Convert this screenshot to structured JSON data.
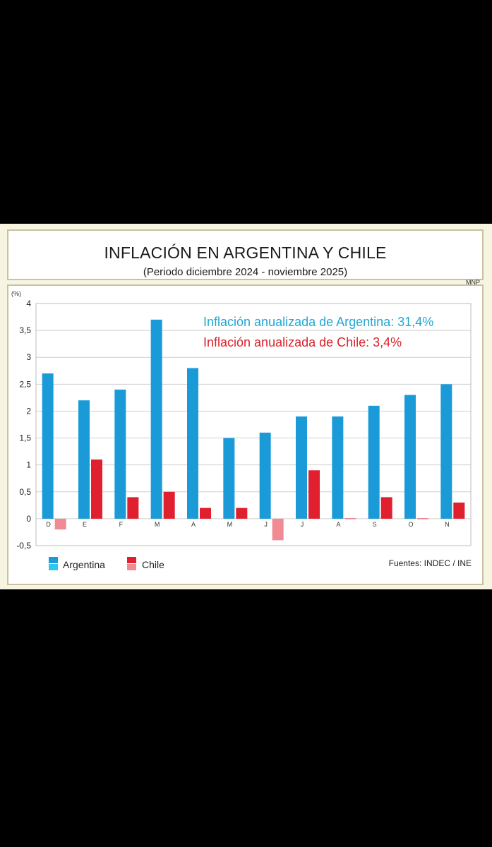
{
  "chart_data": {
    "type": "bar",
    "title": "INFLACIÓN EN ARGENTINA Y CHILE",
    "subtitle": "(Periodo diciembre 2024 - noviembre 2025)",
    "credit": "MNP",
    "y_unit": "(%)",
    "categories": [
      "D",
      "E",
      "F",
      "M",
      "A",
      "M",
      "J",
      "J",
      "A",
      "S",
      "O",
      "N"
    ],
    "series": [
      {
        "name": "Argentina",
        "values": [
          2.7,
          2.2,
          2.4,
          3.7,
          2.8,
          1.5,
          1.6,
          1.9,
          1.9,
          2.1,
          2.3,
          2.5
        ]
      },
      {
        "name": "Chile",
        "values": [
          -0.2,
          1.1,
          0.4,
          0.5,
          0.2,
          0.2,
          -0.4,
          0.9,
          0.0,
          0.4,
          0.0,
          0.3
        ]
      }
    ],
    "ylim": [
      -0.5,
      4
    ],
    "yticks": [
      "4",
      "3,5",
      "3",
      "2,5",
      "2",
      "1,5",
      "1",
      "0,5",
      "0",
      "-0,5"
    ],
    "grid": true,
    "legend": "bottom-left",
    "annotations": [
      {
        "text": "Inflación anualizada de Argentina: 31,4%",
        "series": "Argentina"
      },
      {
        "text": "Inflación anualizada de Chile: 3,4%",
        "series": "Chile"
      }
    ],
    "source": "Fuentes: INDEC / INE",
    "colors": {
      "argentina": "#1b9ad8",
      "argentina_light": "#2ec8ef",
      "chile": "#e0202e",
      "chile_light": "#f08a93",
      "annotation_argentina": "#22a6d6",
      "annotation_chile": "#d8232a"
    }
  }
}
